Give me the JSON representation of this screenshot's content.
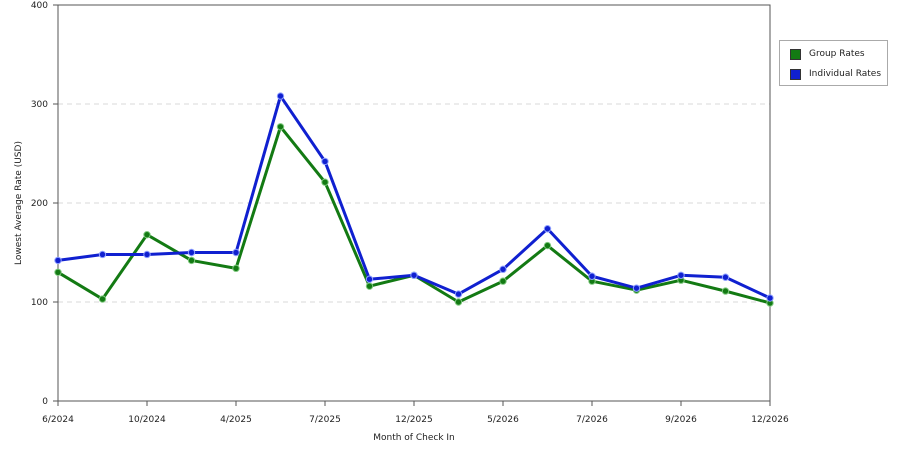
{
  "chart_data": {
    "type": "line",
    "xlabel": "Month of Check In",
    "ylabel": "Lowest Average Rate (USD)",
    "ylim": [
      0,
      400
    ],
    "yticks": [
      "0",
      "100",
      "200",
      "300",
      "400"
    ],
    "xticks": [
      "6/2024",
      "10/2024",
      "4/2025",
      "7/2025",
      "12/2025",
      "5/2026",
      "7/2026",
      "9/2026",
      "12/2026"
    ],
    "point_count": 17,
    "grid": "horizontal dashed",
    "legend_position": "right",
    "series": [
      {
        "name": "Group Rates",
        "color": "#137a13",
        "values": [
          130,
          103,
          168,
          142,
          134,
          277,
          221,
          116,
          127,
          100,
          121,
          157,
          121,
          112,
          122,
          111,
          99
        ]
      },
      {
        "name": "Individual Rates",
        "color": "#1020d0",
        "values": [
          142,
          148,
          148,
          150,
          150,
          308,
          242,
          123,
          127,
          108,
          133,
          174,
          126,
          114,
          127,
          125,
          104
        ]
      }
    ]
  }
}
